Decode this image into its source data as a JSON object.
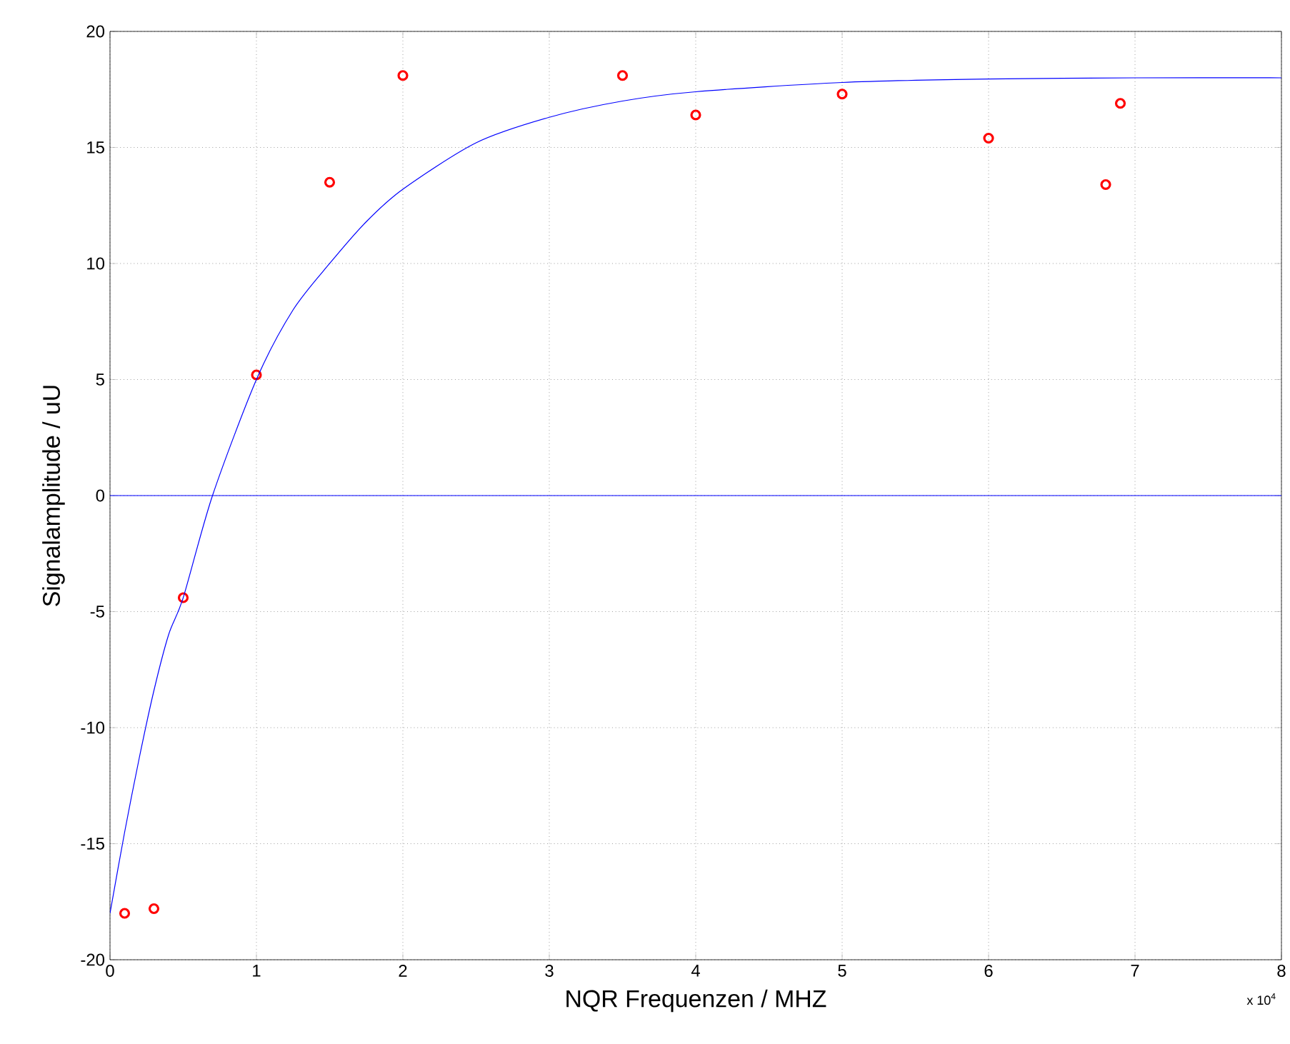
{
  "chart_data": {
    "type": "scatter",
    "xlabel": "NQR Frequenzen / MHZ",
    "ylabel": "Signalamplitude / uU",
    "annotations": [
      "x 10$^{4}$"
    ],
    "xlim": [
      0,
      8
    ],
    "ylim": [
      -20,
      20
    ],
    "xticks": [
      0,
      1,
      2,
      3,
      4,
      5,
      6,
      7,
      8
    ],
    "yticks": [
      -20,
      -15,
      -10,
      -5,
      0,
      5,
      10,
      15,
      20
    ],
    "grid": true,
    "marker": "circle",
    "ref_lines": [
      {
        "axis": "y",
        "value": 0,
        "color": "#0000ff"
      }
    ],
    "series": [
      {
        "color": "#ff0000",
        "x": [
          0.1,
          0.3,
          0.5,
          1,
          1.5,
          2,
          3.5,
          4,
          5,
          6,
          6.8,
          6.9
        ],
        "values": [
          -18,
          -17.8,
          -4.4,
          5.2,
          13.5,
          18.1,
          18.1,
          16.4,
          17.3,
          15.4,
          13.4,
          16.9
        ]
      },
      {
        "type": "line",
        "marker": "none",
        "color": "#0000ff",
        "x": [
          0,
          0.1,
          0.2,
          0.3,
          0.4,
          0.5,
          0.7,
          1,
          1.25,
          1.5,
          1.75,
          2,
          2.5,
          3,
          3.5,
          4,
          5,
          6,
          7,
          8
        ],
        "values": [
          -18,
          -14.5,
          -11.3,
          -8.4,
          -6,
          -4.4,
          0,
          5,
          8,
          10,
          11.8,
          13.2,
          15.2,
          16.3,
          17,
          17.4,
          17.8,
          17.95,
          18,
          18
        ]
      }
    ]
  }
}
